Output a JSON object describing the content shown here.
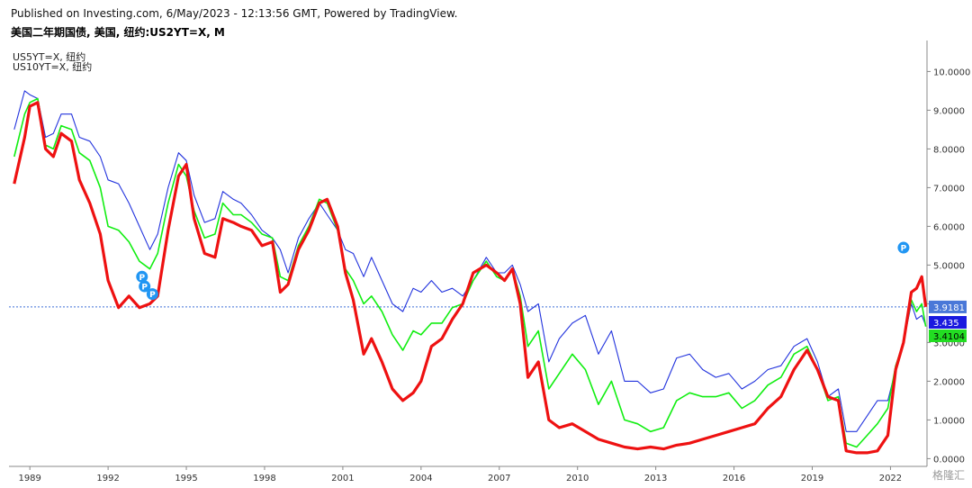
{
  "header": {
    "published": "Published on Investing.com, 6/May/2023 - 12:13:56 GMT, Powered by TradingView.",
    "title": "美国二年期国债, 美国, 纽约:US2YT=X, M"
  },
  "legend": {
    "items": [
      "US5YT=X, 纽约",
      "US10YT=X, 纽约"
    ]
  },
  "watermark": "格隆汇",
  "colors": {
    "us2y": "#ee1111",
    "us5y": "#11ee11",
    "us10y": "#2233dd",
    "marker": "#2196f3",
    "dotted_line": "#3f6fd6"
  },
  "chart_data": {
    "type": "line",
    "title": "美国二年期国债, 美国, 纽约:US2YT=X, M",
    "xlabel": "",
    "ylabel": "",
    "xlim": [
      1988.2,
      2023.4
    ],
    "ylim": [
      -0.2,
      10.8
    ],
    "x_ticks": [
      "1989",
      "1992",
      "1995",
      "1998",
      "2001",
      "2004",
      "2007",
      "2010",
      "2013",
      "2016",
      "2019",
      "2022"
    ],
    "y_ticks": [
      "10.0000",
      "9.0000",
      "8.0000",
      "7.0000",
      "6.0000",
      "5.0000",
      "4.0000",
      "3.0000",
      "2.0000",
      "1.0000",
      "0.0000"
    ],
    "dotted_level": 3.9181,
    "series": [
      {
        "name": "US2YT=X",
        "label": "3.9181",
        "x": [
          1988.4,
          1988.8,
          1989.0,
          1989.3,
          1989.6,
          1989.9,
          1990.2,
          1990.6,
          1990.9,
          1991.3,
          1991.7,
          1992.0,
          1992.4,
          1992.8,
          1993.2,
          1993.6,
          1993.9,
          1994.3,
          1994.7,
          1995.0,
          1995.3,
          1995.7,
          1996.1,
          1996.4,
          1996.8,
          1997.1,
          1997.5,
          1997.9,
          1998.3,
          1998.6,
          1998.9,
          1999.3,
          1999.7,
          2000.1,
          2000.4,
          2000.8,
          2001.1,
          2001.4,
          2001.8,
          2002.1,
          2002.5,
          2002.9,
          2003.3,
          2003.7,
          2004.0,
          2004.4,
          2004.8,
          2005.2,
          2005.6,
          2006.0,
          2006.5,
          2006.9,
          2007.2,
          2007.5,
          2007.8,
          2008.1,
          2008.5,
          2008.9,
          2009.3,
          2009.8,
          2010.3,
          2010.8,
          2011.3,
          2011.8,
          2012.3,
          2012.8,
          2013.3,
          2013.8,
          2014.3,
          2014.8,
          2015.3,
          2015.8,
          2016.3,
          2016.8,
          2017.3,
          2017.8,
          2018.3,
          2018.8,
          2019.2,
          2019.6,
          2020.0,
          2020.3,
          2020.7,
          2021.1,
          2021.5,
          2021.9,
          2022.2,
          2022.5,
          2022.8,
          2023.0,
          2023.2,
          2023.35
        ],
        "y": [
          7.1,
          8.3,
          9.1,
          9.2,
          8.0,
          7.8,
          8.4,
          8.2,
          7.2,
          6.6,
          5.8,
          4.6,
          3.9,
          4.2,
          3.9,
          4.0,
          4.2,
          5.9,
          7.3,
          7.6,
          6.2,
          5.3,
          5.2,
          6.2,
          6.1,
          6.0,
          5.9,
          5.5,
          5.6,
          4.3,
          4.5,
          5.4,
          5.9,
          6.6,
          6.7,
          6.0,
          4.8,
          4.1,
          2.7,
          3.1,
          2.5,
          1.8,
          1.5,
          1.7,
          2.0,
          2.9,
          3.1,
          3.6,
          4.0,
          4.8,
          5.0,
          4.8,
          4.6,
          4.9,
          4.0,
          2.1,
          2.5,
          1.0,
          0.8,
          0.9,
          0.7,
          0.5,
          0.4,
          0.3,
          0.25,
          0.3,
          0.25,
          0.35,
          0.4,
          0.5,
          0.6,
          0.7,
          0.8,
          0.9,
          1.3,
          1.6,
          2.3,
          2.8,
          2.3,
          1.6,
          1.5,
          0.2,
          0.15,
          0.15,
          0.2,
          0.6,
          2.3,
          3.0,
          4.3,
          4.4,
          4.7,
          3.92
        ]
      },
      {
        "name": "US5YT=X",
        "label": "3.4104",
        "x": [
          1988.4,
          1988.8,
          1989.0,
          1989.3,
          1989.6,
          1989.9,
          1990.2,
          1990.6,
          1990.9,
          1991.3,
          1991.7,
          1992.0,
          1992.4,
          1992.8,
          1993.2,
          1993.6,
          1993.9,
          1994.3,
          1994.7,
          1995.0,
          1995.3,
          1995.7,
          1996.1,
          1996.4,
          1996.8,
          1997.1,
          1997.5,
          1997.9,
          1998.3,
          1998.6,
          1998.9,
          1999.3,
          1999.7,
          2000.1,
          2000.4,
          2000.8,
          2001.1,
          2001.4,
          2001.8,
          2002.1,
          2002.5,
          2002.9,
          2003.3,
          2003.7,
          2004.0,
          2004.4,
          2004.8,
          2005.2,
          2005.6,
          2006.0,
          2006.5,
          2006.9,
          2007.2,
          2007.5,
          2007.8,
          2008.1,
          2008.5,
          2008.9,
          2009.3,
          2009.8,
          2010.3,
          2010.8,
          2011.3,
          2011.8,
          2012.3,
          2012.8,
          2013.3,
          2013.8,
          2014.3,
          2014.8,
          2015.3,
          2015.8,
          2016.3,
          2016.8,
          2017.3,
          2017.8,
          2018.3,
          2018.8,
          2019.2,
          2019.6,
          2020.0,
          2020.3,
          2020.7,
          2021.1,
          2021.5,
          2021.9,
          2022.2,
          2022.5,
          2022.8,
          2023.0,
          2023.2,
          2023.35
        ],
        "y": [
          7.8,
          8.9,
          9.2,
          9.3,
          8.1,
          8.0,
          8.6,
          8.5,
          7.9,
          7.7,
          7.0,
          6.0,
          5.9,
          5.6,
          5.1,
          4.9,
          5.3,
          6.6,
          7.6,
          7.3,
          6.4,
          5.7,
          5.8,
          6.6,
          6.3,
          6.3,
          6.1,
          5.8,
          5.7,
          4.7,
          4.6,
          5.5,
          6.0,
          6.7,
          6.6,
          5.9,
          4.9,
          4.6,
          4.0,
          4.2,
          3.8,
          3.2,
          2.8,
          3.3,
          3.2,
          3.5,
          3.5,
          3.9,
          4.0,
          4.6,
          5.1,
          4.7,
          4.6,
          4.9,
          4.2,
          2.9,
          3.3,
          1.8,
          2.2,
          2.7,
          2.3,
          1.4,
          2.0,
          1.0,
          0.9,
          0.7,
          0.8,
          1.5,
          1.7,
          1.6,
          1.6,
          1.7,
          1.3,
          1.5,
          1.9,
          2.1,
          2.7,
          2.9,
          2.3,
          1.5,
          1.6,
          0.4,
          0.3,
          0.6,
          0.9,
          1.3,
          2.4,
          3.0,
          4.1,
          3.8,
          4.0,
          3.41
        ]
      },
      {
        "name": "US10YT=X",
        "label": "3.435",
        "x": [
          1988.4,
          1988.8,
          1989.0,
          1989.3,
          1989.6,
          1989.9,
          1990.2,
          1990.6,
          1990.9,
          1991.3,
          1991.7,
          1992.0,
          1992.4,
          1992.8,
          1993.2,
          1993.6,
          1993.9,
          1994.3,
          1994.7,
          1995.0,
          1995.3,
          1995.7,
          1996.1,
          1996.4,
          1996.8,
          1997.1,
          1997.5,
          1997.9,
          1998.3,
          1998.6,
          1998.9,
          1999.3,
          1999.7,
          2000.1,
          2000.4,
          2000.8,
          2001.1,
          2001.4,
          2001.8,
          2002.1,
          2002.5,
          2002.9,
          2003.3,
          2003.7,
          2004.0,
          2004.4,
          2004.8,
          2005.2,
          2005.6,
          2006.0,
          2006.5,
          2006.9,
          2007.2,
          2007.5,
          2007.8,
          2008.1,
          2008.5,
          2008.9,
          2009.3,
          2009.8,
          2010.3,
          2010.8,
          2011.3,
          2011.8,
          2012.3,
          2012.8,
          2013.3,
          2013.8,
          2014.3,
          2014.8,
          2015.3,
          2015.8,
          2016.3,
          2016.8,
          2017.3,
          2017.8,
          2018.3,
          2018.8,
          2019.2,
          2019.6,
          2020.0,
          2020.3,
          2020.7,
          2021.1,
          2021.5,
          2021.9,
          2022.2,
          2022.5,
          2022.8,
          2023.0,
          2023.2,
          2023.35
        ],
        "y": [
          8.5,
          9.5,
          9.4,
          9.3,
          8.3,
          8.4,
          8.9,
          8.9,
          8.3,
          8.2,
          7.8,
          7.2,
          7.1,
          6.6,
          6.0,
          5.4,
          5.8,
          7.0,
          7.9,
          7.7,
          6.8,
          6.1,
          6.2,
          6.9,
          6.7,
          6.6,
          6.3,
          5.9,
          5.7,
          5.4,
          4.8,
          5.7,
          6.2,
          6.6,
          6.3,
          5.9,
          5.4,
          5.3,
          4.7,
          5.2,
          4.6,
          4.0,
          3.8,
          4.4,
          4.3,
          4.6,
          4.3,
          4.4,
          4.2,
          4.6,
          5.2,
          4.8,
          4.8,
          5.0,
          4.5,
          3.8,
          4.0,
          2.5,
          3.1,
          3.5,
          3.7,
          2.7,
          3.3,
          2.0,
          2.0,
          1.7,
          1.8,
          2.6,
          2.7,
          2.3,
          2.1,
          2.2,
          1.8,
          2.0,
          2.3,
          2.4,
          2.9,
          3.1,
          2.5,
          1.6,
          1.8,
          0.7,
          0.7,
          1.1,
          1.5,
          1.5,
          2.3,
          3.0,
          4.0,
          3.6,
          3.7,
          3.435
        ]
      }
    ],
    "markers": [
      {
        "label": "P",
        "x": 1993.3,
        "y": 4.7
      },
      {
        "label": "P",
        "x": 1993.4,
        "y": 4.45
      },
      {
        "label": "P",
        "x": 1993.7,
        "y": 4.25
      },
      {
        "label": "P",
        "x": 2022.5,
        "y": 5.45
      }
    ],
    "grid": false,
    "legend_position": "top-left"
  }
}
